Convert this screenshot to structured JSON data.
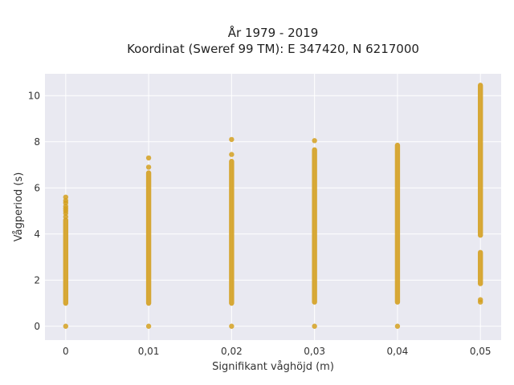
{
  "chart_data": {
    "type": "scatter",
    "title_line1": "År 1979 - 2019",
    "title_line2": "Koordinat (Sweref 99 TM): E 347420, N 6217000",
    "xlabel": "Signifikant våghöjd (m)",
    "ylabel": "Vågperiod (s)",
    "x_ticks": [
      0,
      0.01,
      0.02,
      0.03,
      0.04,
      0.05
    ],
    "x_tick_labels": [
      "0",
      "0,01",
      "0,02",
      "0,03",
      "0,04",
      "0,05"
    ],
    "y_ticks": [
      0,
      2,
      4,
      6,
      8,
      10
    ],
    "y_tick_labels": [
      "0",
      "2",
      "4",
      "6",
      "8",
      "10"
    ],
    "xlim": [
      -0.0025,
      0.0525
    ],
    "ylim": [
      -0.6,
      10.95
    ],
    "grid": true,
    "color": "#D4A020",
    "background": "#E9E9F1",
    "series": [
      {
        "x": 0,
        "ranges": [
          [
            1.0,
            4.6
          ]
        ],
        "points": [
          0,
          4.75,
          4.9,
          5.0,
          5.1,
          5.2,
          5.35,
          5.45,
          5.6
        ]
      },
      {
        "x": 0.01,
        "ranges": [
          [
            1.0,
            6.65
          ]
        ],
        "points": [
          0,
          6.9,
          7.3
        ]
      },
      {
        "x": 0.02,
        "ranges": [
          [
            1.0,
            7.15
          ]
        ],
        "points": [
          0,
          7.45,
          8.1
        ]
      },
      {
        "x": 0.03,
        "ranges": [
          [
            1.05,
            7.65
          ]
        ],
        "points": [
          0,
          8.05
        ]
      },
      {
        "x": 0.04,
        "ranges": [
          [
            1.05,
            7.85
          ]
        ],
        "points": [
          0
        ]
      },
      {
        "x": 0.05,
        "ranges": [
          [
            1.85,
            3.2
          ],
          [
            3.95,
            10.45
          ]
        ],
        "points": [
          1.05,
          1.15
        ]
      }
    ]
  }
}
